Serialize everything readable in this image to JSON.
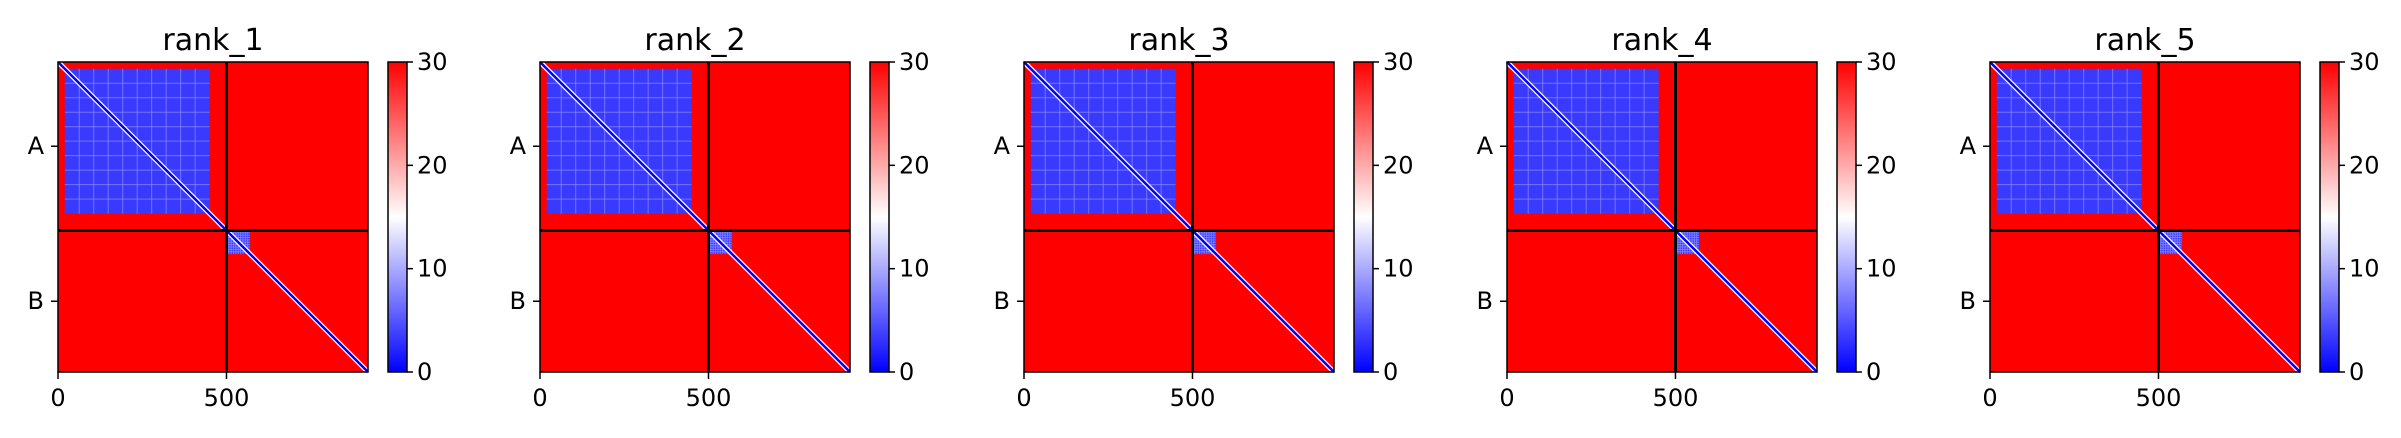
{
  "chart_data": [
    {
      "type": "heatmap",
      "title": "rank_1",
      "x_ticks": [
        0,
        500
      ],
      "y_ticks": [
        "A",
        "B"
      ],
      "xlim": [
        0,
        920
      ],
      "chain_break": 500,
      "colorbar": {
        "ticks": [
          0,
          10,
          20,
          30
        ],
        "range": [
          0,
          30
        ],
        "colors": [
          "#0000ff",
          "#ffffff",
          "#ff0000"
        ]
      },
      "regions": [
        {
          "label": "A/A low-error block",
          "x": [
            20,
            450
          ],
          "y": [
            20,
            450
          ],
          "value": 4
        },
        {
          "label": "B/B diagonal block",
          "x": [
            500,
            570
          ],
          "y": [
            500,
            570
          ],
          "value": 4
        }
      ]
    },
    {
      "type": "heatmap",
      "title": "rank_2",
      "x_ticks": [
        0,
        500
      ],
      "y_ticks": [
        "A",
        "B"
      ],
      "xlim": [
        0,
        920
      ],
      "chain_break": 500,
      "colorbar": {
        "ticks": [
          0,
          10,
          20,
          30
        ],
        "range": [
          0,
          30
        ],
        "colors": [
          "#0000ff",
          "#ffffff",
          "#ff0000"
        ]
      },
      "regions": [
        {
          "label": "A/A low-error block",
          "x": [
            20,
            450
          ],
          "y": [
            20,
            450
          ],
          "value": 4
        },
        {
          "label": "B/B diagonal block",
          "x": [
            500,
            570
          ],
          "y": [
            500,
            570
          ],
          "value": 4
        }
      ]
    },
    {
      "type": "heatmap",
      "title": "rank_3",
      "x_ticks": [
        0,
        500
      ],
      "y_ticks": [
        "A",
        "B"
      ],
      "xlim": [
        0,
        920
      ],
      "chain_break": 500,
      "colorbar": {
        "ticks": [
          0,
          10,
          20,
          30
        ],
        "range": [
          0,
          30
        ],
        "colors": [
          "#0000ff",
          "#ffffff",
          "#ff0000"
        ]
      },
      "regions": [
        {
          "label": "A/A low-error block",
          "x": [
            20,
            450
          ],
          "y": [
            20,
            450
          ],
          "value": 4
        },
        {
          "label": "B/B diagonal block",
          "x": [
            500,
            570
          ],
          "y": [
            500,
            570
          ],
          "value": 4
        }
      ]
    },
    {
      "type": "heatmap",
      "title": "rank_4",
      "x_ticks": [
        0,
        500
      ],
      "y_ticks": [
        "A",
        "B"
      ],
      "xlim": [
        0,
        920
      ],
      "chain_break": 500,
      "colorbar": {
        "ticks": [
          0,
          10,
          20,
          30
        ],
        "range": [
          0,
          30
        ],
        "colors": [
          "#0000ff",
          "#ffffff",
          "#ff0000"
        ]
      },
      "regions": [
        {
          "label": "A/A low-error block",
          "x": [
            20,
            450
          ],
          "y": [
            20,
            450
          ],
          "value": 4
        },
        {
          "label": "B/B diagonal block",
          "x": [
            500,
            570
          ],
          "y": [
            500,
            570
          ],
          "value": 4
        }
      ]
    },
    {
      "type": "heatmap",
      "title": "rank_5",
      "x_ticks": [
        0,
        500
      ],
      "y_ticks": [
        "A",
        "B"
      ],
      "xlim": [
        0,
        920
      ],
      "chain_break": 500,
      "colorbar": {
        "ticks": [
          0,
          10,
          20,
          30
        ],
        "range": [
          0,
          30
        ],
        "colors": [
          "#0000ff",
          "#ffffff",
          "#ff0000"
        ]
      },
      "regions": [
        {
          "label": "A/A low-error block",
          "x": [
            20,
            450
          ],
          "y": [
            20,
            450
          ],
          "value": 4
        },
        {
          "label": "B/B diagonal block",
          "x": [
            500,
            570
          ],
          "y": [
            500,
            570
          ],
          "value": 4
        }
      ]
    }
  ]
}
